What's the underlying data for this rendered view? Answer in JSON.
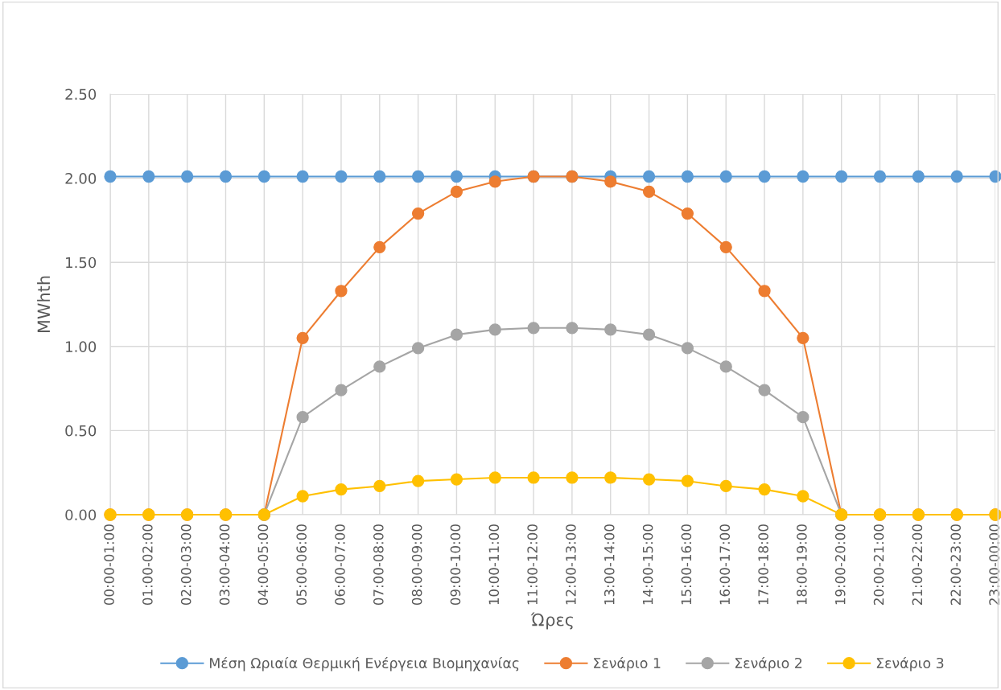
{
  "chart_data": {
    "type": "line",
    "xlabel": "Ώρες",
    "ylabel": "MWhth",
    "categories": [
      "00:00-01:00",
      "01:00-02:00",
      "02:00-03:00",
      "03:00-04:00",
      "04:00-05:00",
      "05:00-06:00",
      "06:00-07:00",
      "07:00-08:00",
      "08:00-09:00",
      "09:00-10:00",
      "10:00-11:00",
      "11:00-12:00",
      "12:00-13:00",
      "13:00-14:00",
      "14:00-15:00",
      "15:00-16:00",
      "16:00-17:00",
      "17:00-18:00",
      "18:00-19:00",
      "19:00-20:00",
      "20:00-21:00",
      "21:00-22:00",
      "22:00-23:00",
      "23:00-00:00"
    ],
    "series": [
      {
        "name": "Μέση Ωριαία Θερμική Ενέργεια Βιομηχανίας",
        "color": "#5b9bd5",
        "values": [
          2.01,
          2.01,
          2.01,
          2.01,
          2.01,
          2.01,
          2.01,
          2.01,
          2.01,
          2.01,
          2.01,
          2.01,
          2.01,
          2.01,
          2.01,
          2.01,
          2.01,
          2.01,
          2.01,
          2.01,
          2.01,
          2.01,
          2.01,
          2.01
        ]
      },
      {
        "name": "Σενάριο 1",
        "color": "#ed7d31",
        "values": [
          0,
          0,
          0,
          0,
          0,
          1.05,
          1.33,
          1.59,
          1.79,
          1.92,
          1.98,
          2.01,
          2.01,
          1.98,
          1.92,
          1.79,
          1.59,
          1.33,
          1.05,
          0,
          0,
          0,
          0,
          0
        ]
      },
      {
        "name": "Σενάριο 2",
        "color": "#a5a5a5",
        "values": [
          null,
          null,
          null,
          null,
          0,
          0.58,
          0.74,
          0.88,
          0.99,
          1.07,
          1.1,
          1.11,
          1.11,
          1.1,
          1.07,
          0.99,
          0.88,
          0.74,
          0.58,
          0,
          null,
          null,
          null,
          null
        ]
      },
      {
        "name": "Σενάριο 3",
        "color": "#ffc000",
        "values": [
          0,
          0,
          0,
          0,
          0,
          0.11,
          0.15,
          0.17,
          0.2,
          0.21,
          0.22,
          0.22,
          0.22,
          0.22,
          0.21,
          0.2,
          0.17,
          0.15,
          0.11,
          0,
          0,
          0,
          0,
          0
        ]
      }
    ],
    "ylim": [
      0,
      2.5
    ],
    "yticks": [
      {
        "value": 0,
        "label": "0.00"
      },
      {
        "value": 0.5,
        "label": "0.50"
      },
      {
        "value": 1.0,
        "label": "1.00"
      },
      {
        "value": 1.5,
        "label": "1.50"
      },
      {
        "value": 2.0,
        "label": "2.00"
      },
      {
        "value": 2.5,
        "label": "2.50"
      }
    ],
    "grid": true,
    "legend": "bottom",
    "marker": "circle",
    "line_style": "solid"
  }
}
